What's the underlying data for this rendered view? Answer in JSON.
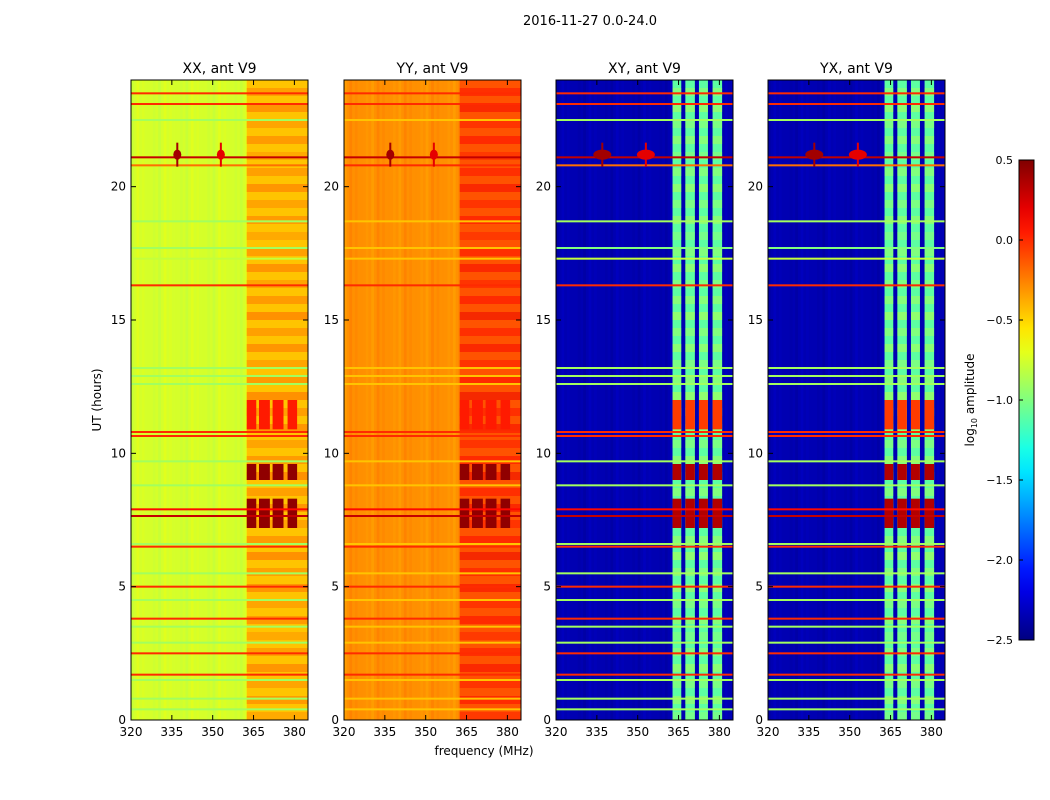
{
  "chart_data": {
    "type": "heatmap",
    "suptitle": "2016-11-27 0.0-24.0",
    "xlabel": "frequency (MHz)",
    "ylabel": "UT (hours)",
    "xlim": [
      320,
      385
    ],
    "ylim": [
      0,
      24
    ],
    "xticks": [
      "320",
      "335",
      "350",
      "365",
      "380"
    ],
    "xtick_values": [
      320,
      335,
      350,
      365,
      380
    ],
    "yticks": [
      "0",
      "5",
      "10",
      "15",
      "20"
    ],
    "ytick_values": [
      0,
      5,
      10,
      15,
      20
    ],
    "colorbar": {
      "label_prefix": "log",
      "label_sub": "10",
      "label_suffix": " amplitude",
      "range": [
        -2.5,
        0.5
      ],
      "colormap": "jet",
      "ticks": [
        "0.5",
        "0.0",
        "−0.5",
        "−1.0",
        "−1.5",
        "−2.0",
        "−2.5"
      ],
      "tick_values": [
        0.5,
        0.0,
        -0.5,
        -1.0,
        -1.5,
        -2.0,
        -2.5
      ]
    },
    "panels": [
      {
        "title": "XX, ant V9",
        "background": -0.75,
        "band_level": -0.45,
        "bands": [
          [
            362.5,
            385
          ]
        ],
        "burst_level": 0.45,
        "line_boost": 0.6
      },
      {
        "title": "YY, ant V9",
        "background": -0.3,
        "band_level": -0.12,
        "bands": [
          [
            362.5,
            385
          ]
        ],
        "burst_level": 0.45,
        "line_boost": 0.5
      },
      {
        "title": "XY, ant V9",
        "background": -2.35,
        "band_level": -1.1,
        "bands": [
          [
            362.8,
            366
          ],
          [
            367.5,
            371
          ],
          [
            372.5,
            375.8
          ],
          [
            377.5,
            381
          ]
        ],
        "burst_level": 0.35,
        "line_boost": 1.6
      },
      {
        "title": "YX, ant V9",
        "background": -2.35,
        "band_level": -1.1,
        "bands": [
          [
            362.8,
            366
          ],
          [
            367.5,
            371
          ],
          [
            372.5,
            375.8
          ],
          [
            377.5,
            381
          ]
        ],
        "burst_level": 0.35,
        "line_boost": 1.6
      }
    ],
    "bursts_hours": [
      [
        7.2,
        8.3
      ],
      [
        9.0,
        9.6
      ],
      [
        10.9,
        12.0
      ]
    ],
    "rfi_lines_hours": [
      {
        "t": 23.5,
        "level": 0.0
      },
      {
        "t": 23.1,
        "level": 0.0
      },
      {
        "t": 22.5,
        "level": -0.9
      },
      {
        "t": 21.1,
        "level": 0.3
      },
      {
        "t": 20.8,
        "level": -0.2
      },
      {
        "t": 18.7,
        "level": -0.9
      },
      {
        "t": 17.7,
        "level": -1.0
      },
      {
        "t": 17.3,
        "level": -0.8
      },
      {
        "t": 16.3,
        "level": 0.0
      },
      {
        "t": 13.2,
        "level": -0.9
      },
      {
        "t": 12.9,
        "level": -0.9
      },
      {
        "t": 12.6,
        "level": -0.9
      },
      {
        "t": 10.8,
        "level": 0.0
      },
      {
        "t": 10.65,
        "level": 0.0
      },
      {
        "t": 9.7,
        "level": -0.9
      },
      {
        "t": 8.8,
        "level": -0.9
      },
      {
        "t": 7.9,
        "level": 0.1
      },
      {
        "t": 7.65,
        "level": 0.3
      },
      {
        "t": 6.6,
        "level": -0.9
      },
      {
        "t": 6.5,
        "level": 0.0
      },
      {
        "t": 5.5,
        "level": -0.9
      },
      {
        "t": 5.0,
        "level": 0.0
      },
      {
        "t": 4.5,
        "level": -0.9
      },
      {
        "t": 3.8,
        "level": 0.0
      },
      {
        "t": 3.5,
        "level": -0.9
      },
      {
        "t": 2.9,
        "level": -0.9
      },
      {
        "t": 2.5,
        "level": 0.0
      },
      {
        "t": 1.7,
        "level": 0.0
      },
      {
        "t": 1.5,
        "level": -0.9
      },
      {
        "t": 0.8,
        "level": -0.9
      },
      {
        "t": 0.4,
        "level": -0.9
      }
    ],
    "point_sources": [
      {
        "f": 337,
        "t": 21.2,
        "level": 0.4
      },
      {
        "f": 353,
        "t": 21.2,
        "level": 0.2
      }
    ]
  }
}
